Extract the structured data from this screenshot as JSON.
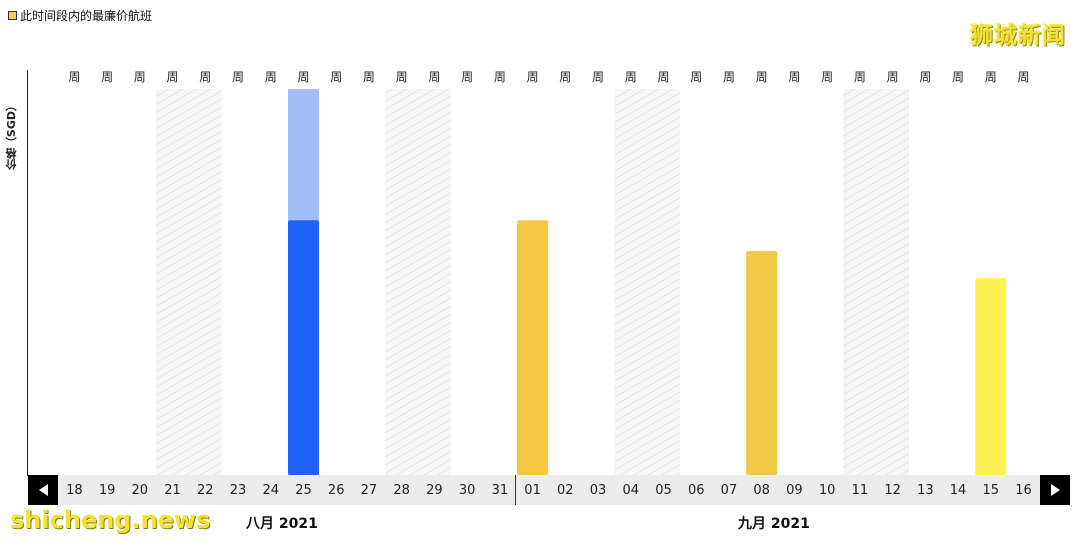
{
  "legend": {
    "label": "此时间段内的最廉价航班"
  },
  "watermark": {
    "top": "狮城新闻",
    "bottom": "shicheng.news"
  },
  "chart_data": {
    "type": "bar",
    "ylabel": "价格（SGD）",
    "week_label": "周",
    "categories": [
      "18",
      "19",
      "20",
      "21",
      "22",
      "23",
      "24",
      "25",
      "26",
      "27",
      "28",
      "29",
      "30",
      "31",
      "01",
      "02",
      "03",
      "04",
      "05",
      "06",
      "07",
      "08",
      "09",
      "10",
      "11",
      "12",
      "13",
      "14",
      "15",
      "16"
    ],
    "values": [
      null,
      null,
      null,
      null,
      null,
      null,
      null,
      0.66,
      null,
      null,
      null,
      null,
      null,
      null,
      0.66,
      null,
      null,
      null,
      null,
      null,
      null,
      0.58,
      null,
      null,
      null,
      null,
      null,
      null,
      0.51,
      null
    ],
    "selected_index": 7,
    "selected_overlay_value": 1.0,
    "weekend_indices": [
      3,
      4,
      10,
      11,
      17,
      18,
      24,
      25
    ],
    "bar_colors": {
      "7": "#1f63f5",
      "14": "#f5c842",
      "21": "#f2c847",
      "28": "#fdf052"
    },
    "selected_overlay_color": "#a1bff7",
    "ylim": [
      0,
      1
    ],
    "months": [
      {
        "label": "八月 2021"
      },
      {
        "label": "九月 2021"
      }
    ]
  }
}
